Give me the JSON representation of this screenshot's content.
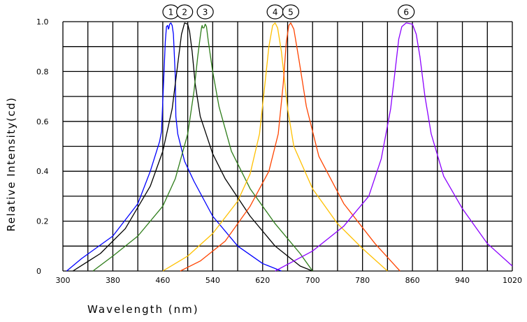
{
  "chart_data": {
    "type": "line",
    "title": "",
    "xlabel": "Wavelength (nm)",
    "ylabel": "Relative Intensity(cd)",
    "xlim": [
      300,
      1020
    ],
    "ylim": [
      0,
      1.0
    ],
    "x_ticks": [
      "300",
      "380",
      "460",
      "540",
      "620",
      "700",
      "780",
      "860",
      "940",
      "1020"
    ],
    "y_ticks": [
      "0",
      "0.2",
      "0.4",
      "0.6",
      "0.8",
      "1.0"
    ],
    "grid": true,
    "series": [
      {
        "name": "1",
        "color": "#0000ff",
        "points": [
          [
            306,
            0
          ],
          [
            330,
            0.05
          ],
          [
            380,
            0.14
          ],
          [
            420,
            0.27
          ],
          [
            440,
            0.4
          ],
          [
            450,
            0.48
          ],
          [
            455,
            0.52
          ],
          [
            458,
            0.56
          ],
          [
            462,
            0.8
          ],
          [
            464,
            0.92
          ],
          [
            466,
            0.98
          ],
          [
            468,
            0.985
          ],
          [
            469,
            0.97
          ],
          [
            470,
            0.975
          ],
          [
            471,
            0.99
          ],
          [
            473,
            0.995
          ],
          [
            475,
            0.985
          ],
          [
            477,
            0.95
          ],
          [
            480,
            0.78
          ],
          [
            481,
            0.62
          ],
          [
            484,
            0.55
          ],
          [
            495,
            0.44
          ],
          [
            510,
            0.36
          ],
          [
            540,
            0.22
          ],
          [
            580,
            0.1
          ],
          [
            620,
            0.03
          ],
          [
            650,
            0
          ]
        ]
      },
      {
        "name": "2",
        "color": "#000000",
        "points": [
          [
            316,
            0
          ],
          [
            360,
            0.07
          ],
          [
            400,
            0.17
          ],
          [
            440,
            0.34
          ],
          [
            460,
            0.48
          ],
          [
            475,
            0.65
          ],
          [
            485,
            0.85
          ],
          [
            490,
            0.95
          ],
          [
            495,
            0.995
          ],
          [
            500,
            0.99
          ],
          [
            503,
            0.96
          ],
          [
            507,
            0.88
          ],
          [
            512,
            0.75
          ],
          [
            520,
            0.62
          ],
          [
            540,
            0.47
          ],
          [
            560,
            0.37
          ],
          [
            600,
            0.22
          ],
          [
            640,
            0.1
          ],
          [
            680,
            0.02
          ],
          [
            700,
            0
          ]
        ]
      },
      {
        "name": "3",
        "color": "#2e7d1a",
        "points": [
          [
            348,
            0
          ],
          [
            380,
            0.06
          ],
          [
            420,
            0.14
          ],
          [
            460,
            0.26
          ],
          [
            480,
            0.37
          ],
          [
            500,
            0.55
          ],
          [
            510,
            0.72
          ],
          [
            516,
            0.86
          ],
          [
            520,
            0.94
          ],
          [
            522,
            0.975
          ],
          [
            523,
            0.985
          ],
          [
            524,
            0.975
          ],
          [
            526,
            0.975
          ],
          [
            528,
            0.99
          ],
          [
            530,
            0.98
          ],
          [
            533,
            0.92
          ],
          [
            540,
            0.8
          ],
          [
            550,
            0.66
          ],
          [
            570,
            0.48
          ],
          [
            600,
            0.33
          ],
          [
            640,
            0.19
          ],
          [
            680,
            0.07
          ],
          [
            700,
            0
          ]
        ]
      },
      {
        "name": "4",
        "color": "#ffc000",
        "points": [
          [
            460,
            0
          ],
          [
            500,
            0.06
          ],
          [
            540,
            0.15
          ],
          [
            580,
            0.28
          ],
          [
            600,
            0.39
          ],
          [
            615,
            0.55
          ],
          [
            625,
            0.78
          ],
          [
            630,
            0.9
          ],
          [
            636,
            0.985
          ],
          [
            640,
            0.995
          ],
          [
            644,
            0.975
          ],
          [
            650,
            0.88
          ],
          [
            660,
            0.65
          ],
          [
            670,
            0.5
          ],
          [
            700,
            0.33
          ],
          [
            740,
            0.19
          ],
          [
            780,
            0.09
          ],
          [
            820,
            0
          ]
        ]
      },
      {
        "name": "5",
        "color": "#ff4400",
        "points": [
          [
            488,
            0
          ],
          [
            520,
            0.04
          ],
          [
            560,
            0.12
          ],
          [
            600,
            0.26
          ],
          [
            630,
            0.4
          ],
          [
            645,
            0.55
          ],
          [
            653,
            0.75
          ],
          [
            658,
            0.92
          ],
          [
            662,
            0.985
          ],
          [
            665,
            0.995
          ],
          [
            670,
            0.97
          ],
          [
            678,
            0.85
          ],
          [
            690,
            0.66
          ],
          [
            710,
            0.46
          ],
          [
            750,
            0.27
          ],
          [
            800,
            0.11
          ],
          [
            840,
            0
          ]
        ]
      },
      {
        "name": "6",
        "color": "#8b00ff",
        "points": [
          [
            640,
            0
          ],
          [
            700,
            0.08
          ],
          [
            750,
            0.18
          ],
          [
            790,
            0.3
          ],
          [
            810,
            0.45
          ],
          [
            825,
            0.65
          ],
          [
            833,
            0.82
          ],
          [
            838,
            0.93
          ],
          [
            843,
            0.98
          ],
          [
            850,
            0.995
          ],
          [
            860,
            0.99
          ],
          [
            866,
            0.95
          ],
          [
            872,
            0.86
          ],
          [
            880,
            0.7
          ],
          [
            890,
            0.55
          ],
          [
            910,
            0.38
          ],
          [
            940,
            0.25
          ],
          [
            980,
            0.11
          ],
          [
            1020,
            0.02
          ]
        ]
      }
    ]
  }
}
